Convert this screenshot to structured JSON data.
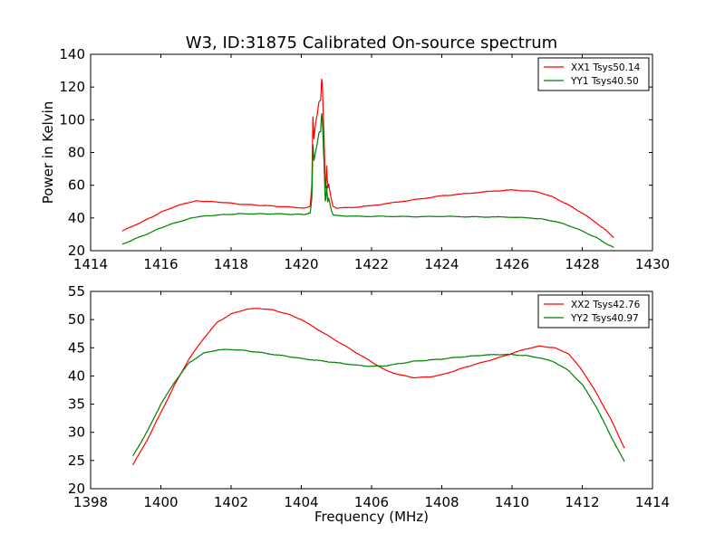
{
  "figure": {
    "title": "W3, ID:31875 Calibrated On-source spectrum"
  },
  "chart_data": [
    {
      "type": "line",
      "title": "W3, ID:31875 Calibrated On-source spectrum",
      "xlabel": "",
      "ylabel": "Power in Kelvin",
      "xlim": [
        1414,
        1430
      ],
      "ylim": [
        20,
        140
      ],
      "xticks": [
        1414,
        1416,
        1418,
        1420,
        1422,
        1424,
        1426,
        1428,
        1430
      ],
      "yticks": [
        20,
        40,
        60,
        80,
        100,
        120,
        140
      ],
      "grid": false,
      "legend_position": "top-right",
      "series": [
        {
          "name": "XX1 Tsys50.14",
          "color": "#ff0000",
          "x": [
            1414.9,
            1415.3,
            1415.7,
            1416.0,
            1416.4,
            1416.8,
            1417.0,
            1417.4,
            1417.8,
            1418.2,
            1418.6,
            1419.0,
            1419.4,
            1419.8,
            1420.1,
            1420.25,
            1420.3,
            1420.33,
            1420.36,
            1420.4,
            1420.45,
            1420.5,
            1420.55,
            1420.58,
            1420.6,
            1420.62,
            1420.65,
            1420.68,
            1420.7,
            1420.72,
            1420.75,
            1420.78,
            1420.8,
            1420.85,
            1420.9,
            1421.0,
            1421.5,
            1422.0,
            1422.5,
            1423.0,
            1423.5,
            1424.0,
            1424.5,
            1425.0,
            1425.5,
            1426.0,
            1426.5,
            1426.8,
            1427.2,
            1427.6,
            1428.0,
            1428.4,
            1428.7,
            1428.9
          ],
          "values": [
            32,
            36,
            40,
            43.5,
            47,
            49.5,
            50.5,
            50,
            49.5,
            48.5,
            48,
            47.5,
            47,
            46.5,
            46,
            47,
            60,
            102,
            88,
            97,
            103,
            111,
            112,
            125,
            122,
            106,
            87,
            58,
            60,
            72,
            58,
            61,
            58,
            52,
            47,
            46,
            46.5,
            47.5,
            49,
            50.5,
            52,
            53.5,
            54.5,
            55.5,
            56.5,
            57,
            56.5,
            55.5,
            52.5,
            48,
            43,
            37,
            32,
            28
          ]
        },
        {
          "name": "YY1 Tsys40.50",
          "color": "#008000",
          "x": [
            1414.9,
            1415.3,
            1415.7,
            1416.0,
            1416.4,
            1416.8,
            1417.0,
            1417.4,
            1417.8,
            1418.2,
            1418.6,
            1419.0,
            1419.4,
            1419.8,
            1420.1,
            1420.25,
            1420.3,
            1420.33,
            1420.36,
            1420.4,
            1420.45,
            1420.5,
            1420.55,
            1420.58,
            1420.6,
            1420.62,
            1420.65,
            1420.68,
            1420.7,
            1420.72,
            1420.75,
            1420.78,
            1420.8,
            1420.85,
            1420.9,
            1421.0,
            1421.5,
            1422.0,
            1422.5,
            1423.0,
            1423.5,
            1424.0,
            1424.5,
            1425.0,
            1425.5,
            1426.0,
            1426.5,
            1426.8,
            1427.2,
            1427.6,
            1428.0,
            1428.4,
            1428.7,
            1428.9
          ],
          "values": [
            24,
            27.5,
            31,
            34,
            37,
            39.5,
            40.5,
            41.5,
            42,
            42.5,
            42.5,
            42.5,
            42.5,
            42.2,
            42.2,
            43,
            52,
            85,
            75,
            80,
            85,
            92,
            93,
            104,
            100,
            88,
            72,
            50,
            52,
            60,
            50,
            52,
            50,
            45,
            42,
            41.5,
            41,
            41,
            41,
            40.8,
            40.8,
            41,
            40.8,
            40.6,
            40.6,
            40.5,
            40,
            39.5,
            38,
            35.5,
            32,
            28,
            24,
            22
          ]
        }
      ]
    },
    {
      "type": "line",
      "title": "",
      "xlabel": "Frequency (MHz)",
      "ylabel": "",
      "xlim": [
        1398,
        1414
      ],
      "ylim": [
        20,
        55
      ],
      "xticks": [
        1398,
        1400,
        1402,
        1404,
        1406,
        1408,
        1410,
        1412,
        1414
      ],
      "yticks": [
        20,
        25,
        30,
        35,
        40,
        45,
        50,
        55
      ],
      "grid": false,
      "legend_position": "top-right",
      "series": [
        {
          "name": "XX2 Tsys42.76",
          "color": "#ff0000",
          "x": [
            1399.2,
            1399.6,
            1400.0,
            1400.4,
            1400.8,
            1401.2,
            1401.6,
            1402.0,
            1402.4,
            1402.8,
            1403.2,
            1403.6,
            1404.0,
            1404.4,
            1404.8,
            1405.2,
            1405.6,
            1406.0,
            1406.4,
            1406.8,
            1407.2,
            1407.6,
            1408.0,
            1408.4,
            1408.8,
            1409.2,
            1409.6,
            1410.0,
            1410.4,
            1410.8,
            1411.2,
            1411.6,
            1412.0,
            1412.4,
            1412.8,
            1413.2
          ],
          "values": [
            24.2,
            28.5,
            33.5,
            38.5,
            43,
            46.5,
            49.5,
            51,
            51.8,
            52,
            51.7,
            51,
            50,
            48.5,
            47,
            45.5,
            44,
            42.5,
            41,
            40.2,
            39.7,
            39.8,
            40.2,
            41,
            41.8,
            42.5,
            43.2,
            44,
            44.8,
            45.3,
            45,
            44,
            41,
            37,
            32.5,
            27.2
          ]
        },
        {
          "name": "YY2 Tsys40.97",
          "color": "#008000",
          "x": [
            1399.2,
            1399.6,
            1400.0,
            1400.4,
            1400.8,
            1401.2,
            1401.6,
            1402.0,
            1402.4,
            1402.8,
            1403.2,
            1403.6,
            1404.0,
            1404.4,
            1404.8,
            1405.2,
            1405.6,
            1406.0,
            1406.4,
            1406.8,
            1407.2,
            1407.6,
            1408.0,
            1408.4,
            1408.8,
            1409.2,
            1409.6,
            1410.0,
            1410.4,
            1410.8,
            1411.2,
            1411.6,
            1412.0,
            1412.4,
            1412.8,
            1413.2
          ],
          "values": [
            25.8,
            30,
            35,
            39,
            42.3,
            44,
            44.6,
            44.7,
            44.5,
            44.2,
            43.8,
            43.5,
            43.1,
            42.8,
            42.5,
            42.2,
            41.9,
            41.7,
            41.8,
            42.2,
            42.6,
            42.8,
            43,
            43.3,
            43.5,
            43.7,
            43.8,
            43.8,
            43.6,
            43.2,
            42.5,
            41,
            38.5,
            34.5,
            29.5,
            24.8
          ]
        }
      ]
    }
  ]
}
